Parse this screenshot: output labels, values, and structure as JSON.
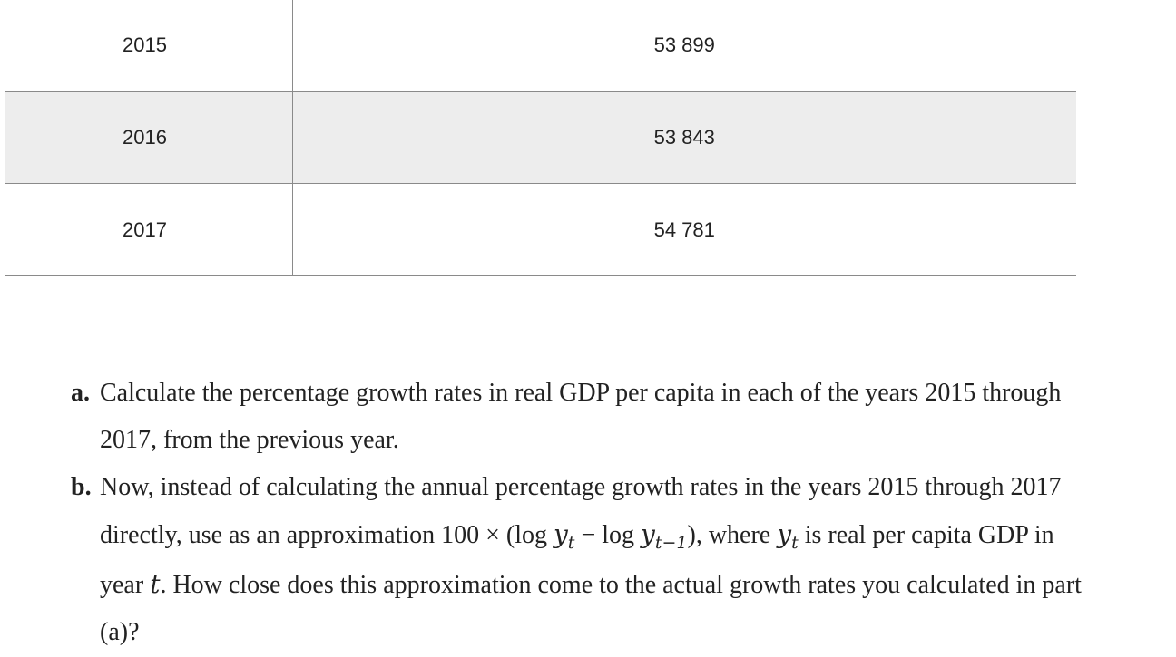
{
  "table": {
    "rows": [
      {
        "year": "2015",
        "value": "53 899"
      },
      {
        "year": "2016",
        "value": "53 843"
      },
      {
        "year": "2017",
        "value": "54 781"
      }
    ]
  },
  "questions": {
    "a": {
      "letter": "a.",
      "text": "Calculate the percentage growth rates in real GDP per capita in each of the years 2015 through 2017, from the previous year."
    },
    "b": {
      "letter": "b.",
      "text_1": "Now, instead of calculating the annual percentage growth rates in the years 2015 through 2017 directly, use as an approximation 100 × (log ",
      "var_y": "y",
      "sub_t": "t",
      "minus_log": " − log ",
      "sub_t_minus_1": "t−1",
      "text_2": "), where ",
      "text_3": " is real per capita GDP in year ",
      "var_t": "t",
      "text_4": ". How close does this approximation come to the actual growth rates you calculated in part (a)?"
    }
  }
}
